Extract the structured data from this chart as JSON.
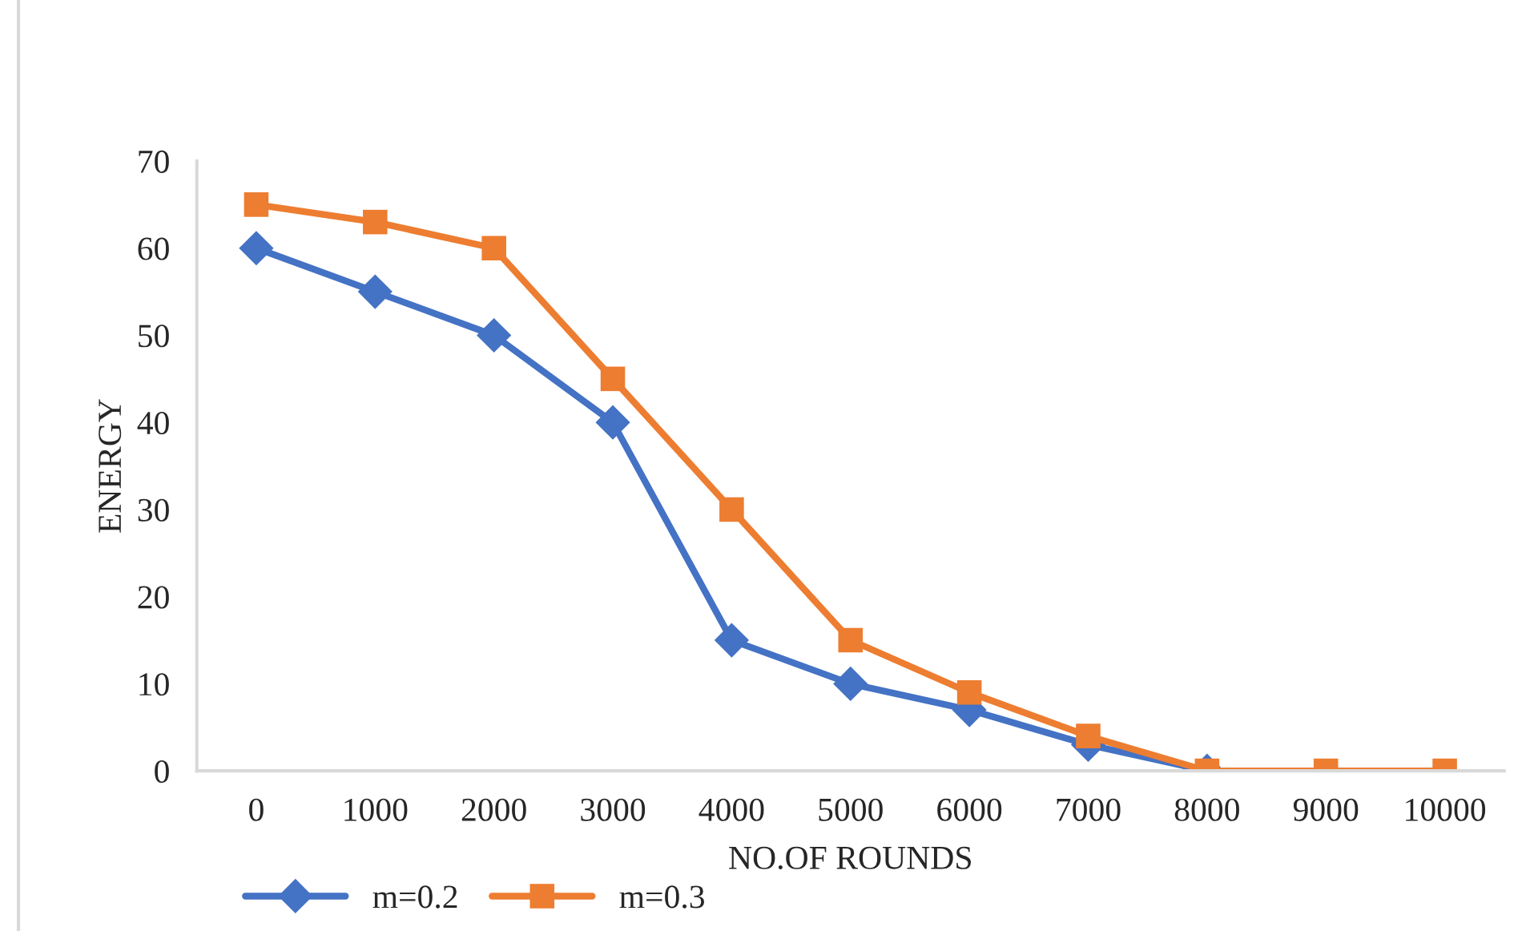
{
  "chart_data": {
    "type": "line",
    "xlabel": "NO.OF ROUNDS",
    "ylabel": "ENERGY",
    "categories": [
      "0",
      "1000",
      "2000",
      "3000",
      "4000",
      "5000",
      "6000",
      "7000",
      "8000",
      "9000",
      "10000"
    ],
    "series": [
      {
        "name": "m=0.2",
        "color": "#4472c4",
        "marker": "diamond",
        "values": [
          60,
          55,
          50,
          40,
          15,
          10,
          7,
          3,
          0,
          null,
          null
        ]
      },
      {
        "name": "m=0.3",
        "color": "#ed7d31",
        "marker": "square",
        "values": [
          65,
          63,
          60,
          45,
          30,
          15,
          9,
          4,
          0,
          0,
          0
        ]
      }
    ],
    "ylim": [
      0,
      70
    ],
    "yticks": [
      0,
      10,
      20,
      30,
      40,
      50,
      60,
      70
    ],
    "grid": false,
    "legend": "bottom left",
    "line_style": "solid"
  }
}
